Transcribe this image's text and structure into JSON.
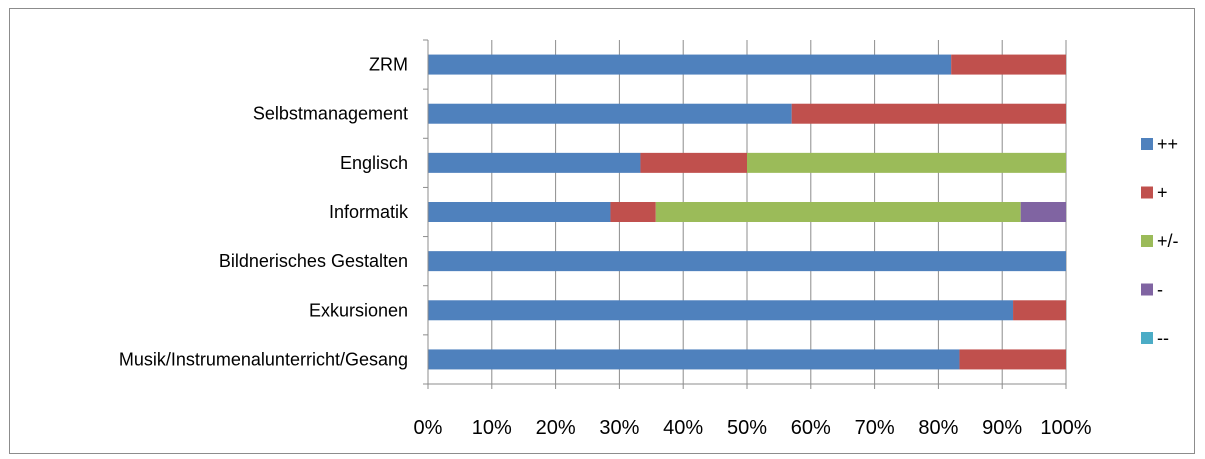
{
  "chart_data": {
    "type": "bar",
    "orientation": "horizontal",
    "stacked": "percent",
    "categories": [
      "ZRM",
      "Selbstmanagement",
      "Englisch",
      "Informatik",
      "Bildnerisches Gestalten",
      "Exkursionen",
      "Musik/Instrumenalunterricht/Gesang"
    ],
    "series": [
      {
        "name": "++",
        "color": "#4f81bd",
        "values": [
          82,
          57,
          33.3,
          28.6,
          100,
          91.7,
          83.3
        ]
      },
      {
        "name": "+",
        "color": "#c0504d",
        "values": [
          18,
          43,
          16.7,
          7.1,
          0,
          8.3,
          16.7
        ]
      },
      {
        "name": "+/-",
        "color": "#9bbb59",
        "values": [
          0,
          0,
          50,
          57.2,
          0,
          0,
          0
        ]
      },
      {
        "name": "-",
        "color": "#8064a2",
        "values": [
          0,
          0,
          0,
          7.1,
          0,
          0,
          0
        ]
      },
      {
        "name": "--",
        "color": "#4bacc6",
        "values": [
          0,
          0,
          0,
          0,
          0,
          0,
          0
        ]
      }
    ],
    "xticks": [
      "0%",
      "10%",
      "20%",
      "30%",
      "40%",
      "50%",
      "60%",
      "70%",
      "80%",
      "90%",
      "100%"
    ],
    "xlim": [
      0,
      100
    ],
    "grid": true,
    "legend_position": "right"
  }
}
